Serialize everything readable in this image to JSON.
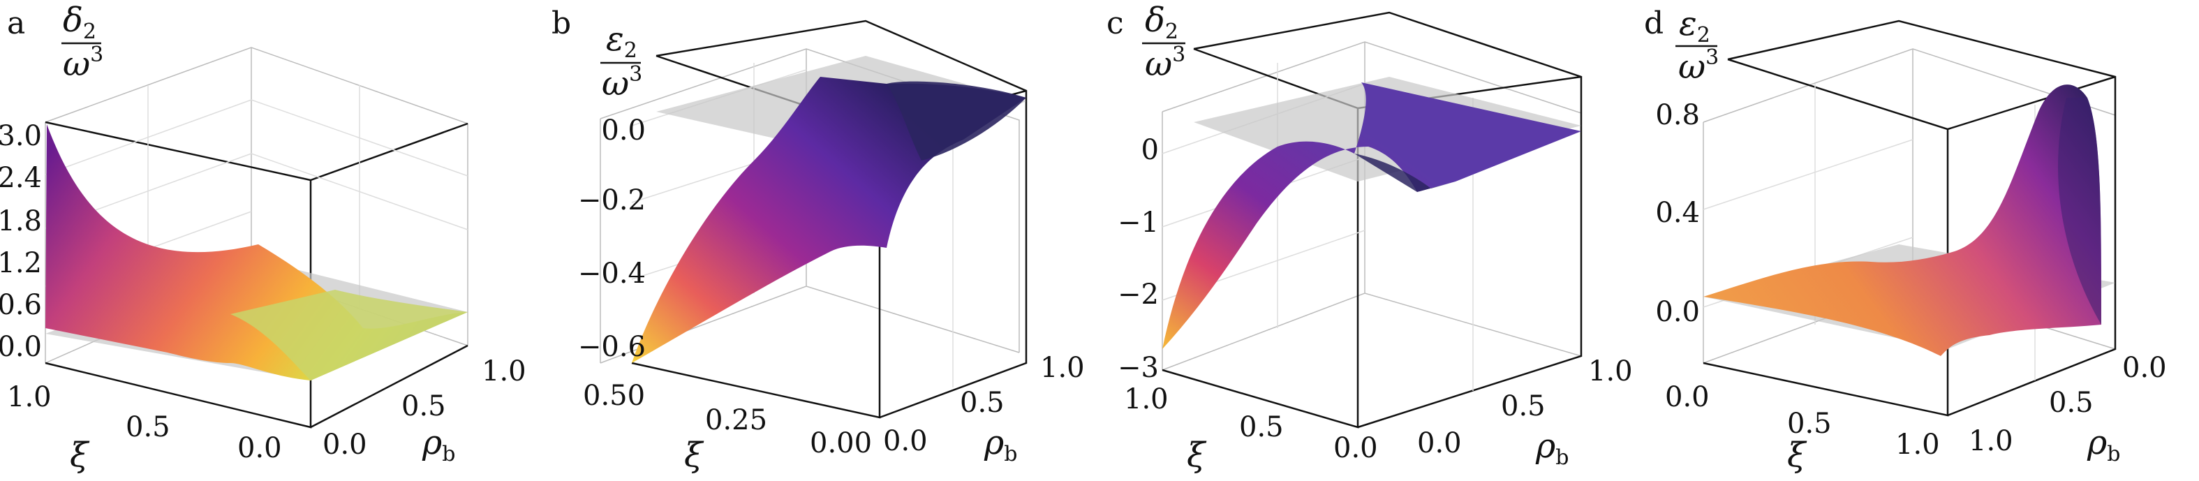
{
  "chart_data": [
    {
      "panel": "a",
      "type": "surface3d",
      "zlabel": {
        "num": "δ",
        "num_sub": "2",
        "den": "ω",
        "den_sup": "3"
      },
      "xlabel": "ξ",
      "ylabel": {
        "sym": "ρ",
        "sub": "b"
      },
      "x_ticks": [
        "1.0",
        "0.5",
        "0.0"
      ],
      "y_ticks": [
        "0.0",
        "0.5",
        "1.0"
      ],
      "z_ticks": [
        "0.0",
        "0.6",
        "1.2",
        "1.8",
        "2.4",
        "3.0"
      ],
      "xlim": [
        1.0,
        0.0
      ],
      "ylim": [
        0.0,
        1.0
      ],
      "zlim": [
        -0.3,
        3.2
      ],
      "zero_plane": true,
      "colormap": "plasma",
      "surface_corners": {
        "xi1_rho0": 3.05,
        "xi1_rho1": 0.0,
        "xi0_rho0": 0.0,
        "xi0_rho1": 0.0
      }
    },
    {
      "panel": "b",
      "type": "surface3d",
      "zlabel": {
        "num": "ε",
        "num_sub": "2",
        "den": "ω",
        "den_sup": "3"
      },
      "xlabel": "ξ",
      "ylabel": {
        "sym": "ρ",
        "sub": "b"
      },
      "x_ticks": [
        "0.50",
        "0.25",
        "0.00"
      ],
      "y_ticks": [
        "0.0",
        "0.5",
        "1.0"
      ],
      "z_ticks": [
        "−0.6",
        "−0.4",
        "−0.2",
        "0.0"
      ],
      "xlim": [
        0.5,
        0.0
      ],
      "ylim": [
        0.0,
        1.0
      ],
      "zlim": [
        -0.65,
        0.1
      ],
      "zero_plane": true,
      "colormap": "plasma",
      "surface_corners": {
        "xi05_rho0": -0.62,
        "xi05_rho1": 0.02,
        "xi0_rho0": -0.33,
        "xi0_rho1": 0.05
      }
    },
    {
      "panel": "c",
      "type": "surface3d",
      "zlabel": {
        "num": "δ",
        "num_sub": "2",
        "den": "ω",
        "den_sup": "3"
      },
      "xlabel": "ξ",
      "ylabel": {
        "sym": "ρ",
        "sub": "b"
      },
      "x_ticks": [
        "1.0",
        "0.5",
        "0.0"
      ],
      "y_ticks": [
        "0.0",
        "0.5",
        "1.0"
      ],
      "z_ticks": [
        "−3",
        "−2",
        "−1",
        "0"
      ],
      "xlim": [
        1.0,
        0.0
      ],
      "ylim": [
        0.0,
        1.0
      ],
      "zlim": [
        -3.0,
        0.5
      ],
      "zero_plane": true,
      "colormap": "plasma",
      "surface_corners": {
        "xi1_rho0": -2.7,
        "xi1_rho1": 0.3,
        "xi0_rho0": -0.3,
        "xi0_rho1": 0.0
      }
    },
    {
      "panel": "d",
      "type": "surface3d",
      "zlabel": {
        "num": "ε",
        "num_sub": "2",
        "den": "ω",
        "den_sup": "3"
      },
      "xlabel": "ξ",
      "ylabel": {
        "sym": "ρ",
        "sub": "b"
      },
      "x_ticks": [
        "0.0",
        "0.5",
        "1.0"
      ],
      "y_ticks": [
        "1.0",
        "0.5",
        "0.0"
      ],
      "z_ticks": [
        "0.0",
        "0.4",
        "0.8"
      ],
      "xlim": [
        0.0,
        1.0
      ],
      "ylim": [
        1.0,
        0.0
      ],
      "zlim": [
        -0.1,
        0.9
      ],
      "zero_plane": true,
      "colormap": "plasma",
      "surface_corners": {
        "xi0_rho1": 0.05,
        "xi1_rho1": -0.05,
        "xi1_rho0": 0.85,
        "xi0_rho0": 0.0
      }
    }
  ]
}
